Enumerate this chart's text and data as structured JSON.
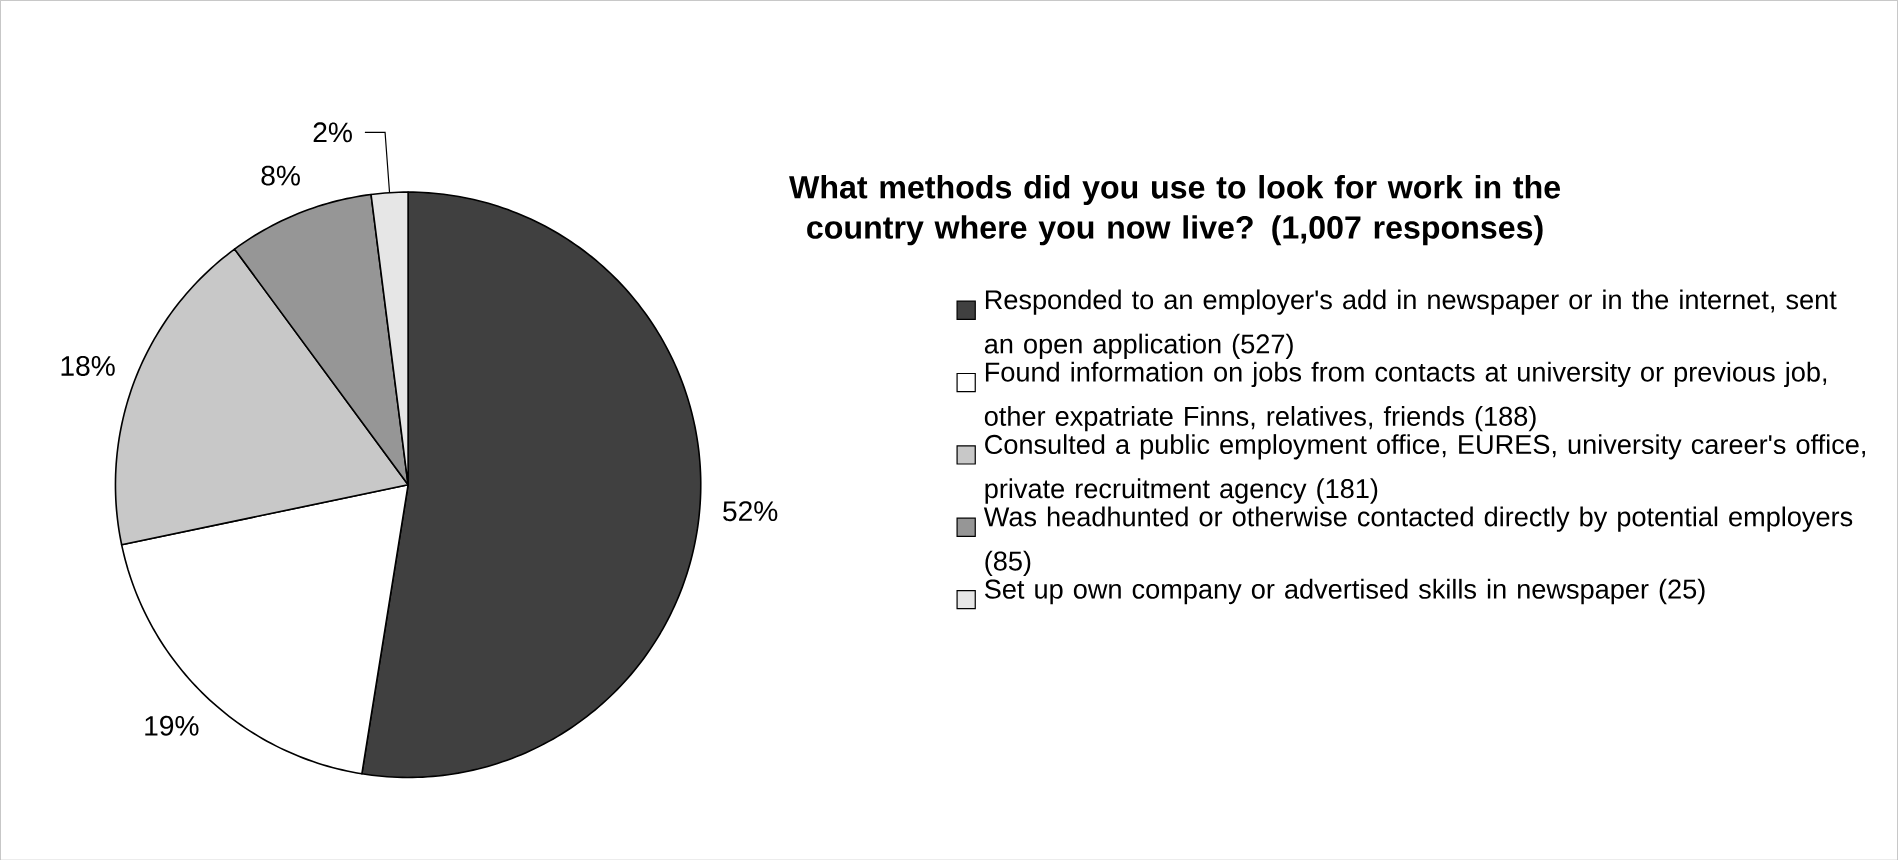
{
  "chart_data": {
    "type": "pie",
    "title": "What methods did you use to look for work in the country where you now live? (1,007 responses)",
    "categories": [
      "Responded to an employer's add in newspaper or in the internet, sent an open application (527)",
      "Found information on jobs from contacts at university or previous job, other expatriate Finns, relatives, friends (188)",
      "Consulted a public employment office, EURES, university career's office, private recruitment agency (181)",
      "Was headhunted or otherwise contacted directly by potential employers (85)",
      "Set up own company or advertised skills in newspaper (25)"
    ],
    "values": [
      52,
      19,
      18,
      8,
      2
    ],
    "value_labels": [
      "52%",
      "19%",
      "18%",
      "8%",
      "2%"
    ],
    "colors": [
      "#404040",
      "#ffffff",
      "#c8c8c8",
      "#969696",
      "#e6e6e6"
    ],
    "legend": "right"
  }
}
